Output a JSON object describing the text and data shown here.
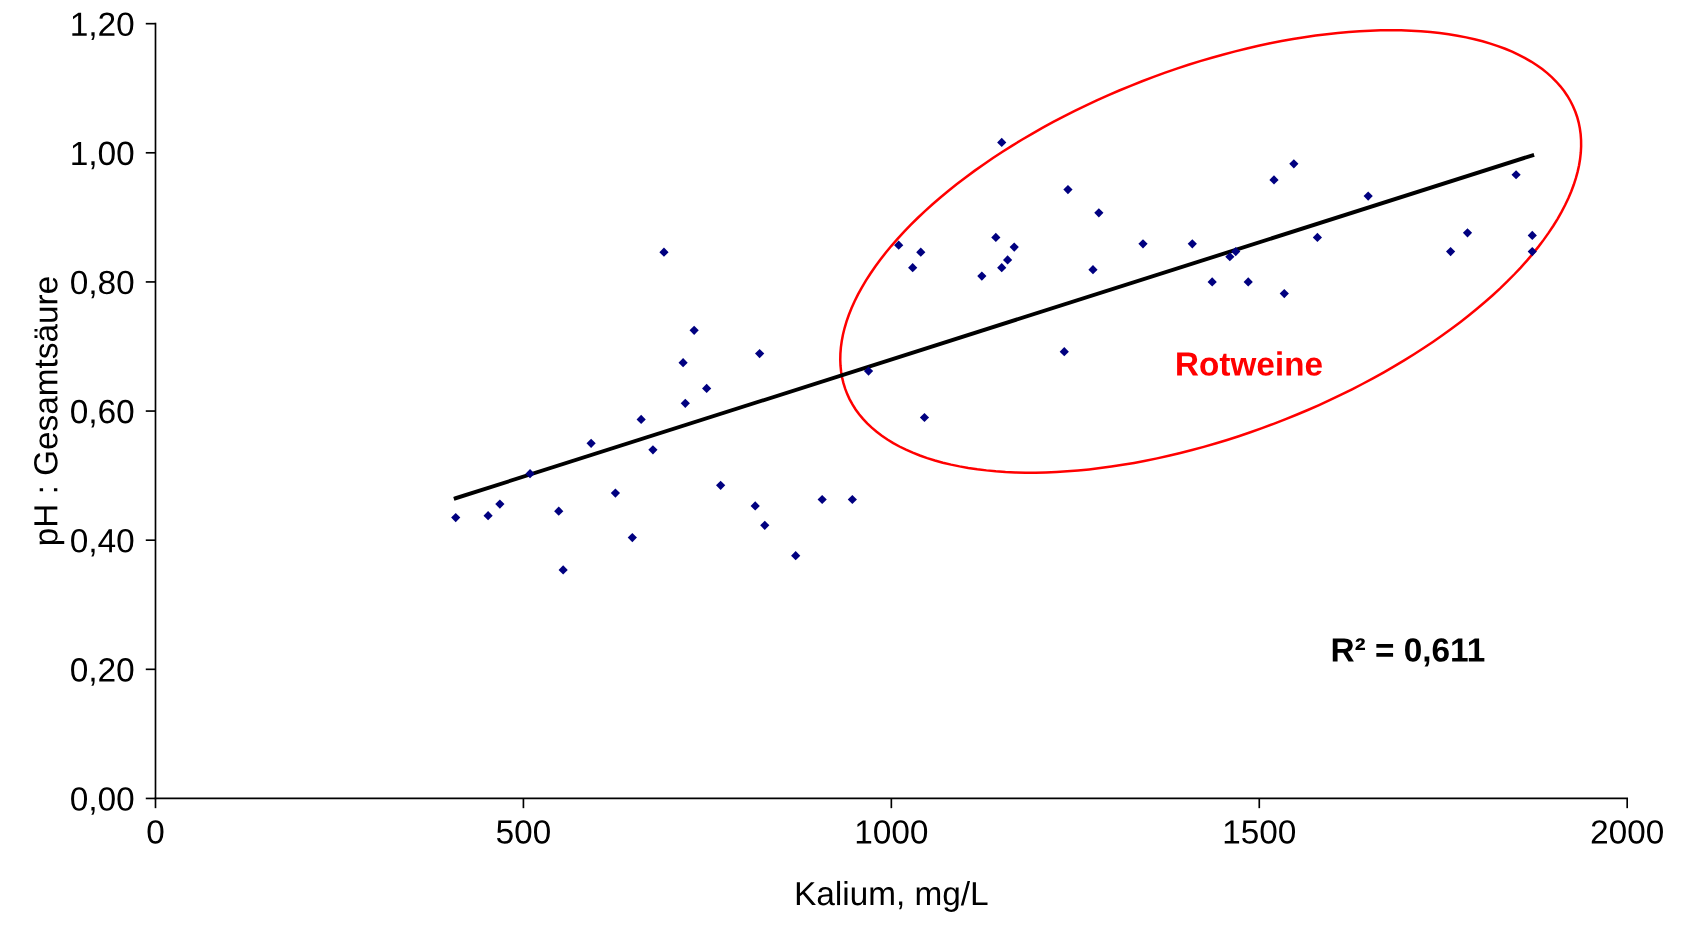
{
  "chart_data": {
    "type": "scatter",
    "xlabel": "Kalium, mg/L",
    "ylabel": "pH : Gesamtsäure",
    "xlim": [
      0,
      2000
    ],
    "xticks": [
      0,
      500,
      1000,
      1500,
      2000
    ],
    "ylim": [
      0,
      1.2
    ],
    "yticks": [
      {
        "value": 0,
        "label": "0,00"
      },
      {
        "value": 0.2,
        "label": "0,20"
      },
      {
        "value": 0.4,
        "label": "0,40"
      },
      {
        "value": 0.6,
        "label": "0,60"
      },
      {
        "value": 0.8,
        "label": "0,80"
      },
      {
        "value": 1.0,
        "label": "1,00"
      },
      {
        "value": 1.2,
        "label": "1,20"
      }
    ],
    "grid": false,
    "legend": false,
    "marker": "diamond",
    "annotations": [
      "Rotweine",
      "R² = 0,611"
    ],
    "series": [
      {
        "color": "#000080",
        "x": [
          408,
          452,
          468,
          509,
          548,
          554,
          592,
          625,
          648,
          660,
          676,
          691,
          717,
          720,
          732,
          749,
          768,
          815,
          821,
          828,
          870,
          906,
          947,
          969,
          1010,
          1029,
          1040,
          1045,
          1123,
          1142,
          1150,
          1150,
          1158,
          1167,
          1235,
          1240,
          1274,
          1282,
          1342,
          1409,
          1436,
          1460,
          1468,
          1485,
          1520,
          1534,
          1547,
          1579,
          1648,
          1760,
          1783,
          1849,
          1871,
          1871
        ],
        "values": [
          0.435,
          0.438,
          0.456,
          0.503,
          0.445,
          0.354,
          0.55,
          0.473,
          0.404,
          0.587,
          0.54,
          0.846,
          0.675,
          0.612,
          0.725,
          0.635,
          0.485,
          0.453,
          0.689,
          0.423,
          0.376,
          0.463,
          0.463,
          0.662,
          0.857,
          0.822,
          0.846,
          0.59,
          0.809,
          0.869,
          1.016,
          0.822,
          0.834,
          0.854,
          0.692,
          0.943,
          0.819,
          0.907,
          0.859,
          0.859,
          0.8,
          0.839,
          0.847,
          0.8,
          0.958,
          0.782,
          0.983,
          0.869,
          0.933,
          0.847,
          0.876,
          0.966,
          0.872,
          0.847
        ]
      },
      {
        "type": "line",
        "color": "#000000",
        "x": [
          408,
          1871
        ],
        "values": [
          0.465,
          0.996
        ],
        "marker": "none"
      }
    ]
  }
}
